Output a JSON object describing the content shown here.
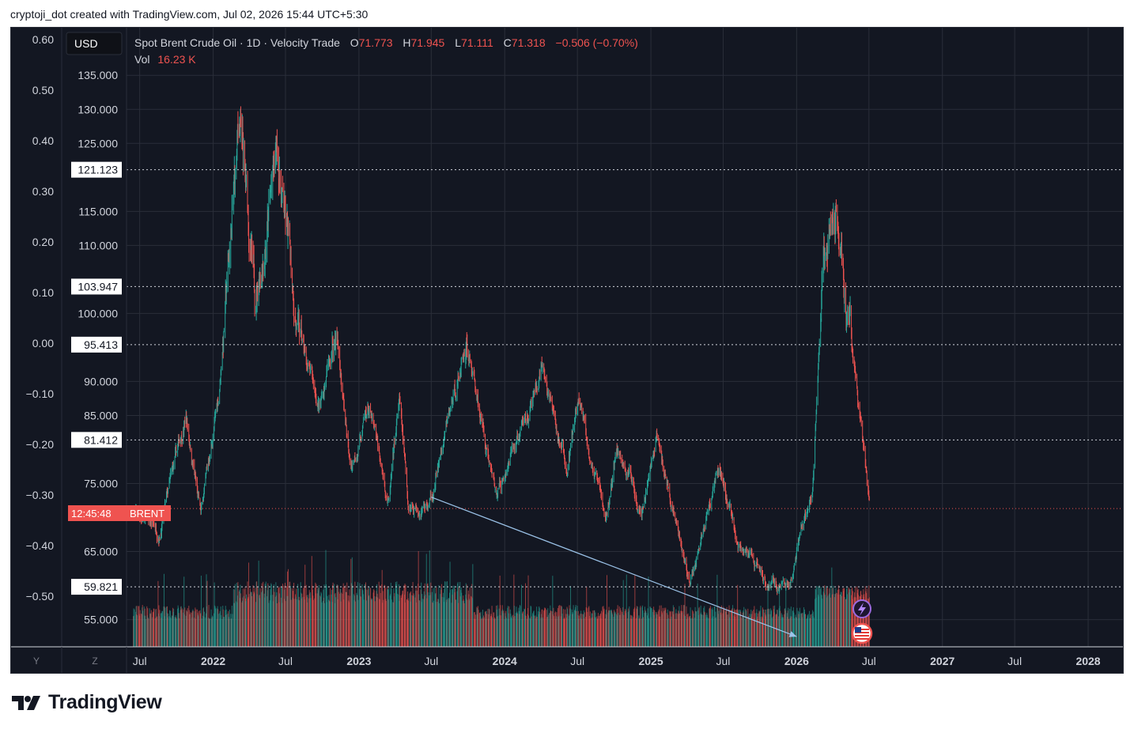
{
  "caption": "cryptoji_dot created with TradingView.com, Jul 02, 2026 15:44 UTC+5:30",
  "brand": "TradingView",
  "colors": {
    "background": "#131722",
    "up": "#26a69a",
    "down": "#ef5350",
    "grid": "#2a2e39",
    "text": "#d1d4dc",
    "trendline": "#9cc4ea"
  },
  "header": {
    "currency": "USD",
    "symbol": "Spot Brent Crude Oil · 1D · Velocity Trade",
    "o_label": "O",
    "o_value": "71.773",
    "h_label": "H",
    "h_value": "71.945",
    "l_label": "L",
    "l_value": "71.111",
    "c_label": "C",
    "c_value": "71.318",
    "change": "−0.506 (−0.70%)",
    "vol_label": "Vol",
    "vol_value": "16.23 K"
  },
  "left_axis": {
    "ticks": [
      "0.60",
      "0.50",
      "0.40",
      "0.30",
      "0.20",
      "0.10",
      "0.00",
      "−0.10",
      "−0.20",
      "−0.30",
      "−0.40",
      "−0.50"
    ],
    "bottom_label": "Y"
  },
  "price_axis": {
    "bottom_label": "Z",
    "countdown": "12:45:48",
    "ticker": "BRENT"
  },
  "chart_data": {
    "type": "candlestick",
    "title": "Spot Brent Crude Oil · 1D · Velocity Trade",
    "currency": "USD",
    "x_ticks": [
      "Jul",
      "2022",
      "Jul",
      "2023",
      "Jul",
      "2024",
      "Jul",
      "2025",
      "Jul",
      "2026",
      "Jul",
      "2027",
      "Jul",
      "2028"
    ],
    "y_ticks": [
      "55.000",
      "65.000",
      "75.000",
      "85.000",
      "90.000",
      "100.000",
      "110.000",
      "115.000",
      "125.000",
      "130.000",
      "135.000"
    ],
    "y_range": [
      51,
      142
    ],
    "horizontal_levels": [
      "121.123",
      "103.947",
      "95.413",
      "81.412",
      "59.821"
    ],
    "last_price": 71.318,
    "price_path": [
      [
        "2021-06-15",
        71
      ],
      [
        "2021-08-20",
        68
      ],
      [
        "2021-10-25",
        85
      ],
      [
        "2021-12-01",
        70
      ],
      [
        "2022-01-15",
        88
      ],
      [
        "2022-03-08",
        128
      ],
      [
        "2022-04-15",
        102
      ],
      [
        "2022-06-10",
        123
      ],
      [
        "2022-08-05",
        96
      ],
      [
        "2022-09-25",
        86
      ],
      [
        "2022-11-05",
        98
      ],
      [
        "2022-12-10",
        77
      ],
      [
        "2023-01-25",
        86
      ],
      [
        "2023-03-17",
        72
      ],
      [
        "2023-04-12",
        87
      ],
      [
        "2023-05-04",
        72
      ],
      [
        "2023-06-28",
        72
      ],
      [
        "2023-09-27",
        96
      ],
      [
        "2023-12-12",
        73
      ],
      [
        "2024-04-05",
        91
      ],
      [
        "2024-06-05",
        77
      ],
      [
        "2024-07-05",
        87
      ],
      [
        "2024-09-10",
        69
      ],
      [
        "2024-10-07",
        80
      ],
      [
        "2024-12-10",
        72
      ],
      [
        "2025-01-15",
        82
      ],
      [
        "2025-04-09",
        60
      ],
      [
        "2025-06-20",
        78
      ],
      [
        "2025-08-10",
        66
      ],
      [
        "2025-10-20",
        61
      ],
      [
        "2025-12-15",
        60
      ],
      [
        "2026-02-10",
        74
      ],
      [
        "2026-03-10",
        108
      ],
      [
        "2026-04-10",
        116
      ],
      [
        "2026-05-10",
        100
      ],
      [
        "2026-07-02",
        71.3
      ]
    ],
    "trendline": {
      "from": [
        "2023-07-01",
        73
      ],
      "to": [
        "2026-01-01",
        52.5
      ]
    },
    "volume_label": "Vol"
  }
}
